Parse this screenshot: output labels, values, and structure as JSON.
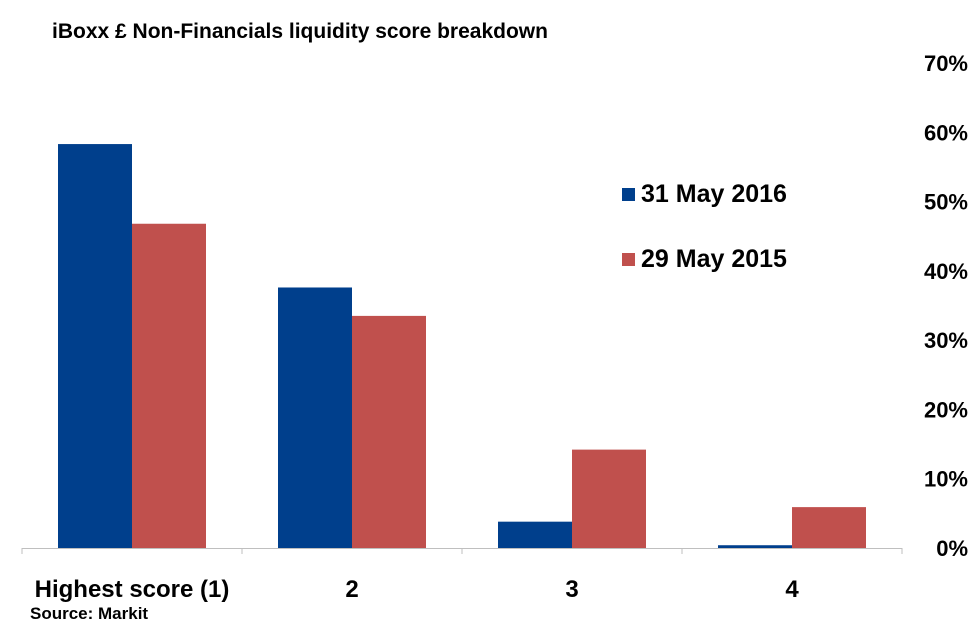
{
  "title": "iBoxx £ Non-Financials liquidity score breakdown",
  "source": "Source: Markit",
  "chart_data": {
    "type": "bar",
    "title": "iBoxx £ Non-Financials liquidity score breakdown",
    "categories": [
      "Highest score (1)",
      "2",
      "3",
      "4"
    ],
    "series": [
      {
        "name": "31 May 2016",
        "color": "#003f8c",
        "values": [
          58.3,
          37.6,
          3.8,
          0.4
        ]
      },
      {
        "name": "29 May 2015",
        "color": "#c0504d",
        "values": [
          46.8,
          33.5,
          14.2,
          5.9
        ]
      }
    ],
    "ylim": [
      0,
      70
    ],
    "yticks": [
      "0%",
      "10%",
      "20%",
      "30%",
      "40%",
      "50%",
      "60%",
      "70%"
    ],
    "y_axis_position": "right",
    "grid": false,
    "legend_position": "right"
  }
}
